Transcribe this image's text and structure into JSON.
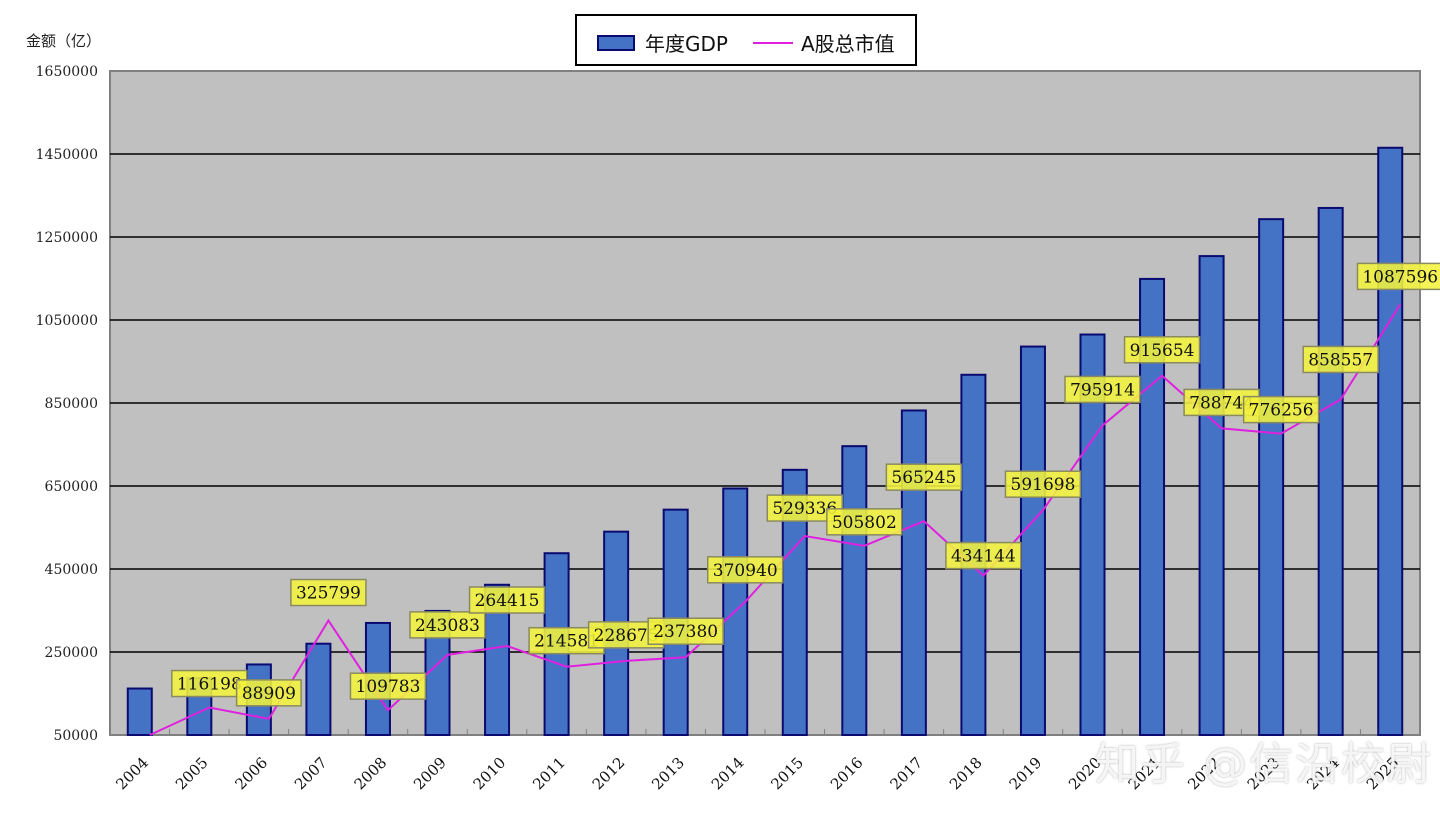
{
  "chart_data": {
    "type": "bar",
    "title": "",
    "xlabel": "",
    "ylabel": "金额（亿）",
    "ylim": [
      50000,
      1650000
    ],
    "yticks": [
      50000,
      250000,
      450000,
      650000,
      850000,
      1050000,
      1250000,
      1450000,
      1650000
    ],
    "grid": true,
    "legend_position": "top-center",
    "categories": [
      "2004",
      "2005",
      "2006",
      "2007",
      "2008",
      "2009",
      "2010",
      "2011",
      "2012",
      "2013",
      "2014",
      "2015",
      "2016",
      "2017",
      "2018",
      "2019",
      "2020",
      "2021",
      "2022",
      "2023",
      "2024",
      "2025"
    ],
    "series": [
      {
        "name": "年度GDP",
        "type": "bar",
        "color": "#4472C4",
        "values": [
          162000,
          187000,
          220000,
          270000,
          320000,
          349000,
          412000,
          488000,
          540000,
          593000,
          644000,
          689000,
          746000,
          832000,
          918000,
          986000,
          1015000,
          1149000,
          1204000,
          1293000,
          1320000,
          1465000
        ]
      },
      {
        "name": "A股总市值",
        "type": "line",
        "color": "#E020E0",
        "values": [
          48000,
          116198,
          88909,
          325799,
          109783,
          243083,
          264415,
          214581,
          228675,
          237380,
          370940,
          529336,
          505802,
          565245,
          434144,
          591698,
          795914,
          915654,
          788744,
          776256,
          858557,
          1087596
        ],
        "data_labels": [
          null,
          "116198",
          "88909",
          "325799",
          "109783",
          "243083",
          "264415",
          "214581",
          "228675",
          "237380",
          "370940",
          "529336",
          "505802",
          "565245",
          "434144",
          "591698",
          "795914",
          "915654",
          "788744",
          "776256",
          "858557",
          "1087596"
        ]
      }
    ]
  },
  "legend": {
    "items": [
      {
        "label": "年度GDP",
        "kind": "bar"
      },
      {
        "label": "A股总市值",
        "kind": "line"
      }
    ]
  },
  "axis": {
    "y_unit": "金额（亿）"
  },
  "watermark": "知乎 @信沿校尉",
  "colors": {
    "plot_bg": "#C0C0C0",
    "bar_fill": "#4472C4",
    "bar_border": "#0A0A70",
    "line": "#E020E0",
    "label_bg": "#F2F23C",
    "label_border": "#8A8A60",
    "grid": "#000000"
  }
}
